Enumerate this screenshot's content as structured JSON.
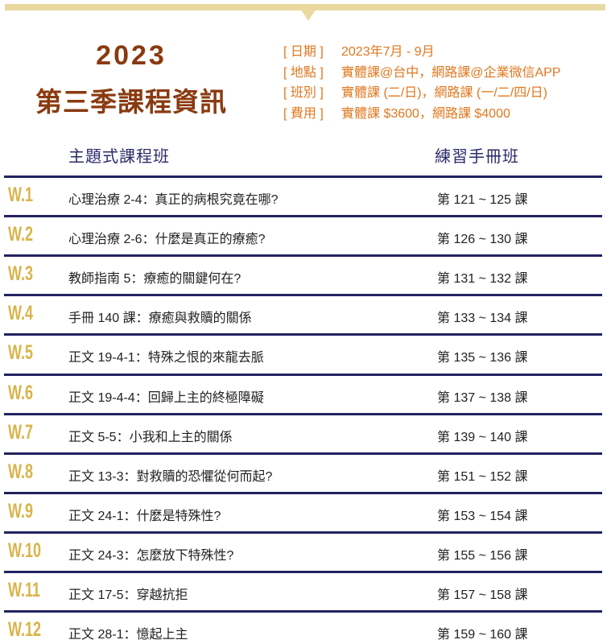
{
  "header": {
    "year": "2023",
    "title": "第三季課程資訊",
    "info": [
      {
        "label": "[ 日期 ]",
        "value": "2023年7月 - 9月"
      },
      {
        "label": "[ 地點 ]",
        "value": "實體課@台中，網路課@企業微信APP"
      },
      {
        "label": "[ 班別 ]",
        "value": "實體課 (二/日)，網路課 (一/二/四/日)"
      },
      {
        "label": "[ 費用 ]",
        "value": "實體課 $3600，網路課 $4000"
      }
    ]
  },
  "table": {
    "columns": [
      "主題式課程班",
      "練習手冊班"
    ],
    "rows": [
      [
        "W.1",
        "心理治療 2-4：真正的病根究竟在哪?",
        "第 121 ~ 125 課"
      ],
      [
        "W.2",
        "心理治療 2-6：什麼是真正的療癒?",
        "第 126 ~ 130 課"
      ],
      [
        "W.3",
        "教師指南 5：療癒的關鍵何在?",
        "第 131 ~ 132 課"
      ],
      [
        "W.4",
        "手冊 140 課：療癒與救贖的關係",
        "第 133 ~ 134 課"
      ],
      [
        "W.5",
        "正文 19-4-1：特殊之恨的來龍去脈",
        "第 135 ~ 136 課"
      ],
      [
        "W.6",
        "正文 19-4-4：回歸上主的終極障礙",
        "第 137 ~ 138 課"
      ],
      [
        "W.7",
        "正文 5-5：小我和上主的關係",
        "第 139 ~ 140 課"
      ],
      [
        "W.8",
        "正文 13-3：對救贖的恐懼從何而起?",
        "第 151 ~ 152 課"
      ],
      [
        "W.9",
        "正文 24-1：什麼是特殊性?",
        "第 153 ~ 154 課"
      ],
      [
        "W.10",
        "正文 24-3：怎麼放下特殊性?",
        "第 155 ~ 156 課"
      ],
      [
        "W.11",
        "正文 17-5：穿越抗拒",
        "第 157 ~ 158 課"
      ],
      [
        "W.12",
        "正文 28-1：憶起上主",
        "第 159 ~ 160 課"
      ]
    ]
  }
}
